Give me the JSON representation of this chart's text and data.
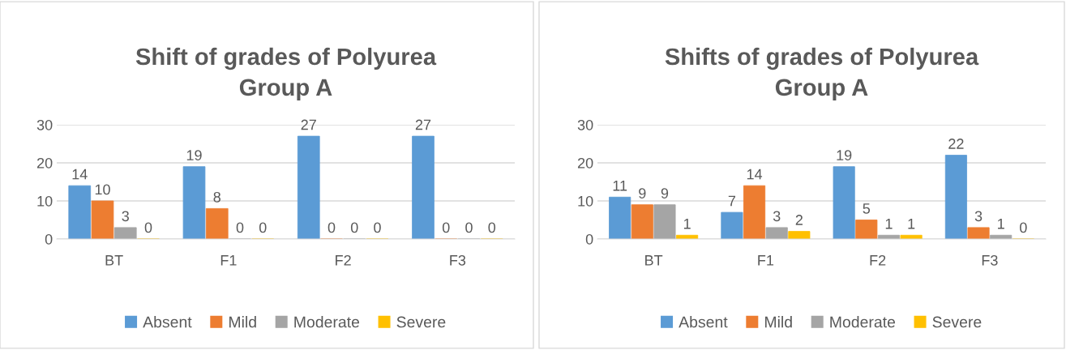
{
  "chart_data": [
    {
      "type": "bar",
      "title": "Shift of grades of Polyurea\nGroup A",
      "categories": [
        "BT",
        "F1",
        "F2",
        "F3"
      ],
      "series": [
        {
          "name": "Absent",
          "color": "#5b9bd5",
          "values": [
            14,
            19,
            27,
            27
          ]
        },
        {
          "name": "Mild",
          "color": "#ed7d31",
          "values": [
            10,
            8,
            0,
            0
          ]
        },
        {
          "name": "Moderate",
          "color": "#a5a5a5",
          "values": [
            3,
            0,
            0,
            0
          ]
        },
        {
          "name": "Severe",
          "color": "#ffc000",
          "values": [
            0,
            0,
            0,
            0
          ]
        }
      ],
      "ylim": [
        0,
        30
      ],
      "yticks": [
        0,
        10,
        20,
        30
      ],
      "grid": "y",
      "legend": "bottom",
      "data_labels": true
    },
    {
      "type": "bar",
      "title": "Shifts of grades of Polyurea\nGroup A",
      "categories": [
        "BT",
        "F1",
        "F2",
        "F3"
      ],
      "series": [
        {
          "name": "Absent",
          "color": "#5b9bd5",
          "values": [
            11,
            7,
            19,
            22
          ]
        },
        {
          "name": "Mild",
          "color": "#ed7d31",
          "values": [
            9,
            14,
            5,
            3
          ]
        },
        {
          "name": "Moderate",
          "color": "#a5a5a5",
          "values": [
            9,
            3,
            1,
            1
          ]
        },
        {
          "name": "Severe",
          "color": "#ffc000",
          "values": [
            1,
            2,
            1,
            0
          ]
        }
      ],
      "ylim": [
        0,
        30
      ],
      "yticks": [
        0,
        10,
        20,
        30
      ],
      "grid": "y",
      "legend": "bottom",
      "data_labels": true
    }
  ]
}
